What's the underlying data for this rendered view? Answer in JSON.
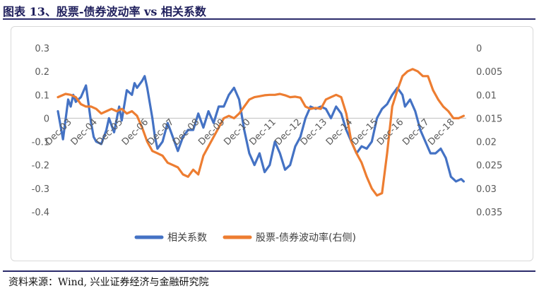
{
  "figure": {
    "title": "图表 13、股票-债券波动率 vs 相关系数",
    "source": "资料来源：Wind, 兴业证券经济与金融研究院"
  },
  "chart_data": {
    "type": "line",
    "title": "",
    "x_tick_labels": [
      "Dec-03",
      "Dec-04",
      "Dec-05",
      "Dec-06",
      "Dec-07",
      "Dec-08",
      "Dec-09",
      "Dec-10",
      "Dec-11",
      "Dec-12",
      "Dec-13",
      "Dec-14",
      "Dec-15",
      "Dec-16",
      "Dec-17",
      "Dec-18"
    ],
    "x_range": [
      2003.5,
      2019.5
    ],
    "y_left": {
      "ylim": [
        -0.4,
        0.3
      ],
      "ticks": [
        "0.3",
        "0.2",
        "0.1",
        "0",
        "-0.1",
        "-0.2",
        "-0.3",
        "-0.4"
      ]
    },
    "y_right": {
      "ylim": [
        0.035,
        0
      ],
      "inverted": true,
      "ticks": [
        "0",
        "0.005",
        "0.01",
        "0.015",
        "0.02",
        "0.025",
        "0.03",
        "0.035"
      ]
    },
    "legend_position": "bottom",
    "series": [
      {
        "name": "相关系数",
        "axis": "left",
        "color": "#4472c4",
        "x": [
          2003.5,
          2003.7,
          2003.9,
          2004.0,
          2004.1,
          2004.2,
          2004.4,
          2004.6,
          2004.8,
          2004.9,
          2005.0,
          2005.2,
          2005.4,
          2005.5,
          2005.7,
          2005.9,
          2006.0,
          2006.2,
          2006.4,
          2006.5,
          2006.6,
          2006.8,
          2006.9,
          2007.0,
          2007.2,
          2007.3,
          2007.4,
          2007.6,
          2007.8,
          2007.9,
          2008.0,
          2008.2,
          2008.4,
          2008.6,
          2008.8,
          2009.0,
          2009.2,
          2009.4,
          2009.6,
          2009.8,
          2010.0,
          2010.2,
          2010.4,
          2010.6,
          2010.8,
          2011.0,
          2011.2,
          2011.4,
          2011.6,
          2011.8,
          2012.0,
          2012.2,
          2012.4,
          2012.6,
          2012.8,
          2013.0,
          2013.2,
          2013.4,
          2013.6,
          2013.8,
          2014.0,
          2014.2,
          2014.4,
          2014.6,
          2014.8,
          2015.0,
          2015.2,
          2015.4,
          2015.6,
          2015.8,
          2016.0,
          2016.2,
          2016.4,
          2016.6,
          2016.8,
          2017.0,
          2017.1,
          2017.3,
          2017.5,
          2017.7,
          2017.9,
          2018.1,
          2018.3,
          2018.5,
          2018.7,
          2018.9,
          2019.1,
          2019.3,
          2019.4
        ],
        "values": [
          0.03,
          -0.09,
          0.08,
          0.05,
          0.1,
          0.07,
          0.09,
          0.14,
          -0.02,
          -0.08,
          -0.1,
          -0.11,
          -0.05,
          0.0,
          -0.06,
          0.05,
          -0.01,
          0.12,
          0.1,
          0.15,
          0.13,
          0.16,
          0.18,
          0.13,
          0.0,
          -0.08,
          -0.13,
          -0.1,
          -0.02,
          -0.05,
          -0.08,
          -0.14,
          -0.08,
          -0.05,
          -0.05,
          0.02,
          -0.04,
          0.03,
          -0.02,
          0.05,
          0.05,
          0.1,
          0.13,
          0.08,
          -0.05,
          -0.15,
          -0.2,
          -0.15,
          -0.23,
          -0.2,
          -0.1,
          -0.15,
          -0.22,
          -0.2,
          -0.12,
          -0.08,
          0.0,
          0.05,
          0.04,
          0.05,
          0.04,
          0.0,
          0.05,
          0.02,
          -0.05,
          -0.1,
          -0.15,
          -0.12,
          -0.13,
          -0.1,
          0.0,
          0.04,
          0.06,
          0.1,
          0.13,
          0.1,
          0.05,
          0.08,
          0.03,
          -0.05,
          -0.1,
          -0.15,
          -0.15,
          -0.13,
          -0.17,
          -0.25,
          -0.27,
          -0.26,
          -0.27
        ]
      },
      {
        "name": "股票-债券波动率(右侧)",
        "axis": "right",
        "color": "#ed7d31",
        "x": [
          2003.5,
          2003.8,
          2004.0,
          2004.2,
          2004.4,
          2004.6,
          2004.8,
          2005.0,
          2005.2,
          2005.4,
          2005.6,
          2005.8,
          2006.0,
          2006.2,
          2006.4,
          2006.6,
          2006.8,
          2007.0,
          2007.2,
          2007.4,
          2007.6,
          2007.8,
          2008.0,
          2008.2,
          2008.4,
          2008.6,
          2008.8,
          2009.0,
          2009.2,
          2009.4,
          2009.6,
          2009.8,
          2010.0,
          2010.2,
          2010.4,
          2010.6,
          2010.8,
          2011.0,
          2011.2,
          2011.4,
          2011.6,
          2011.8,
          2012.0,
          2012.2,
          2012.4,
          2012.6,
          2012.8,
          2013.0,
          2013.2,
          2013.4,
          2013.6,
          2013.8,
          2014.0,
          2014.2,
          2014.4,
          2014.6,
          2014.8,
          2015.0,
          2015.2,
          2015.4,
          2015.6,
          2015.8,
          2016.0,
          2016.2,
          2016.4,
          2016.6,
          2016.8,
          2017.0,
          2017.2,
          2017.4,
          2017.6,
          2017.8,
          2018.0,
          2018.2,
          2018.4,
          2018.6,
          2018.8,
          2019.0,
          2019.2,
          2019.4
        ],
        "values": [
          0.0105,
          0.0098,
          0.01,
          0.0105,
          0.012,
          0.0125,
          0.0125,
          0.013,
          0.014,
          0.0135,
          0.013,
          0.0135,
          0.013,
          0.014,
          0.0135,
          0.0145,
          0.017,
          0.02,
          0.022,
          0.0225,
          0.023,
          0.0245,
          0.025,
          0.0255,
          0.027,
          0.0275,
          0.026,
          0.027,
          0.023,
          0.021,
          0.019,
          0.017,
          0.015,
          0.0145,
          0.015,
          0.014,
          0.0125,
          0.011,
          0.0105,
          0.0103,
          0.0101,
          0.01,
          0.01,
          0.0098,
          0.0101,
          0.0105,
          0.0104,
          0.0106,
          0.0125,
          0.013,
          0.0128,
          0.013,
          0.011,
          0.0105,
          0.01,
          0.0105,
          0.014,
          0.02,
          0.0225,
          0.0245,
          0.0275,
          0.03,
          0.0315,
          0.031,
          0.0225,
          0.0125,
          0.009,
          0.006,
          0.005,
          0.0045,
          0.005,
          0.006,
          0.006,
          0.009,
          0.011,
          0.0125,
          0.0135,
          0.015,
          0.015,
          0.0145
        ]
      }
    ]
  }
}
